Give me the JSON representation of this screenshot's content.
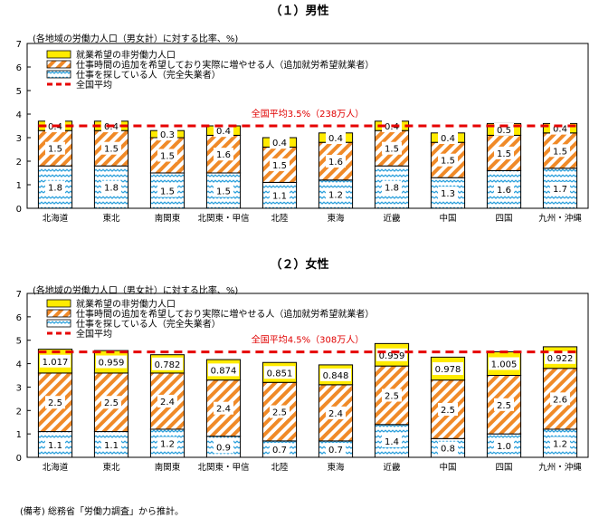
{
  "note": "(備考) 総務省「労働力調査」から推計。",
  "colors": {
    "yellow": "#ffeb00",
    "orange": "#f08a28",
    "blue": "#2aa0dc",
    "avg": "#e60000",
    "avg_text": "#e00000"
  },
  "chart_data": [
    {
      "type": "bar",
      "stacked": true,
      "title": "（１）男性",
      "ylabel": "(各地域の労働力人口（男女計）に対する比率、%)",
      "ylim": [
        0,
        7
      ],
      "yticks": [
        0,
        1,
        2,
        3,
        4,
        5,
        6,
        7
      ],
      "categories": [
        "北海道",
        "東北",
        "南関東",
        "北関東・甲信",
        "北陸",
        "東海",
        "近畿",
        "中国",
        "四国",
        "九州・沖縄"
      ],
      "series": [
        {
          "name": "仕事を探している人（完全失業者）",
          "values": [
            1.8,
            1.8,
            1.5,
            1.5,
            1.1,
            1.2,
            1.8,
            1.3,
            1.6,
            1.7
          ],
          "labels": [
            "1.8",
            "1.8",
            "1.5",
            "1.5",
            "1.1",
            "1.2",
            "1.8",
            "1.3",
            "1.6",
            "1.7"
          ]
        },
        {
          "name": "仕事時間の追加を希望しており実際に増やせる人（追加就労希望就業者）",
          "values": [
            1.5,
            1.5,
            1.5,
            1.6,
            1.5,
            1.6,
            1.5,
            1.5,
            1.5,
            1.5
          ],
          "labels": [
            "1.5",
            "1.5",
            "1.5",
            "1.6",
            "1.5",
            "1.6",
            "1.5",
            "1.5",
            "1.5",
            "1.5"
          ]
        },
        {
          "name": "就業希望の非労働力人口",
          "values": [
            0.4,
            0.4,
            0.3,
            0.4,
            0.4,
            0.4,
            0.4,
            0.4,
            0.5,
            0.4
          ],
          "labels": [
            "0.4",
            "0.4",
            "0.3",
            "0.4",
            "0.4",
            "0.4",
            "0.4",
            "0.4",
            "0.5",
            "0.4"
          ]
        }
      ],
      "average": {
        "name": "全国平均",
        "value": 3.5,
        "label": "全国平均3.5%（238万人）"
      }
    },
    {
      "type": "bar",
      "stacked": true,
      "title": "（２）女性",
      "ylabel": "(各地域の労働力人口（男女計）に対する比率、%)",
      "ylim": [
        0,
        7
      ],
      "yticks": [
        0,
        1,
        2,
        3,
        4,
        5,
        6,
        7
      ],
      "categories": [
        "北海道",
        "東北",
        "南関東",
        "北関東・甲信",
        "北陸",
        "東海",
        "近畿",
        "中国",
        "四国",
        "九州・沖縄"
      ],
      "series": [
        {
          "name": "仕事を探している人（完全失業者）",
          "values": [
            1.1,
            1.1,
            1.2,
            0.9,
            0.7,
            0.7,
            1.4,
            0.8,
            1.0,
            1.2
          ],
          "labels": [
            "1.1",
            "1.1",
            "1.2",
            "0.9",
            "0.7",
            "0.7",
            "1.4",
            "0.8",
            "1.0",
            "1.2"
          ]
        },
        {
          "name": "仕事時間の追加を希望しており実際に増やせる人（追加就労希望就業者）",
          "values": [
            2.5,
            2.5,
            2.4,
            2.4,
            2.5,
            2.4,
            2.5,
            2.5,
            2.5,
            2.6
          ],
          "labels": [
            "2.5",
            "2.5",
            "2.4",
            "2.4",
            "2.5",
            "2.4",
            "2.5",
            "2.5",
            "2.5",
            "2.6"
          ]
        },
        {
          "name": "就業希望の非労働力人口",
          "values": [
            1.017,
            0.959,
            0.782,
            0.874,
            0.851,
            0.848,
            0.959,
            0.978,
            1.005,
            0.922
          ],
          "labels": [
            "1.017",
            "0.959",
            "0.782",
            "0.874",
            "0.851",
            "0.848",
            "0.959",
            "0.978",
            "1.005",
            "0.922"
          ]
        }
      ],
      "average": {
        "name": "全国平均",
        "value": 4.5,
        "label": "全国平均4.5%（308万人）"
      }
    }
  ]
}
